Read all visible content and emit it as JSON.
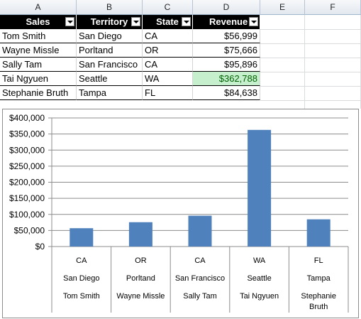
{
  "columns": [
    "A",
    "B",
    "C",
    "D",
    "E",
    "F"
  ],
  "table": {
    "headers": [
      "Sales",
      "Territory",
      "State",
      "Revenue"
    ],
    "rows": [
      [
        "Tom Smith",
        "San Diego",
        "CA",
        "$56,999"
      ],
      [
        "Wayne Missle",
        "Porltand",
        "OR",
        "$75,666"
      ],
      [
        "Sally Tam",
        "San Francisco",
        "CA",
        "$95,896"
      ],
      [
        "Tai Ngyuen",
        "Seattle",
        "WA",
        "$362,788"
      ],
      [
        "Stephanie Bruth",
        "Tampa",
        "FL",
        "$84,638"
      ]
    ],
    "highlight_color": "#c6efce",
    "highlight_text_color": "#006100"
  },
  "chart_data": {
    "type": "bar",
    "color": "#4f81bd",
    "categories": [
      {
        "state": "CA",
        "territory": "San Diego",
        "sales": "Tom Smith"
      },
      {
        "state": "OR",
        "territory": "Porltand",
        "sales": "Wayne Missle"
      },
      {
        "state": "CA",
        "territory": "San Francisco",
        "sales": "Sally Tam"
      },
      {
        "state": "WA",
        "territory": "Seattle",
        "sales": "Tai Ngyuen"
      },
      {
        "state": "FL",
        "territory": "Tampa",
        "sales": "Stephanie Bruth"
      }
    ],
    "values": [
      56999,
      75666,
      95896,
      362788,
      84638
    ],
    "ylim": [
      0,
      400000
    ],
    "yticks": [
      "$0",
      "$50,000",
      "$100,000",
      "$150,000",
      "$200,000",
      "$250,000",
      "$300,000",
      "$350,000",
      "$400,000"
    ],
    "grid": true,
    "legend": "none"
  }
}
